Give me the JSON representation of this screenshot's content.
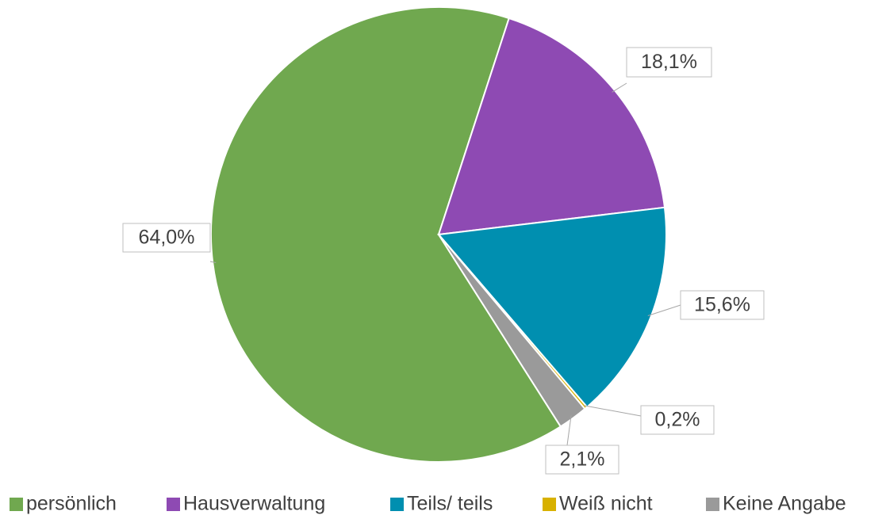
{
  "chart_data": {
    "type": "pie",
    "categories": [
      "persönlich",
      "Hausverwaltung",
      "Teils/ teils",
      "Weiß nicht",
      "Keine Angabe"
    ],
    "values": [
      64.0,
      18.1,
      15.6,
      0.2,
      2.1
    ],
    "value_labels": [
      "64,0%",
      "18,1%",
      "15,6%",
      "0,2%",
      "2,1%"
    ],
    "colors": [
      "#70a84f",
      "#8e4ab3",
      "#008fb0",
      "#d8b100",
      "#9a9a9a"
    ],
    "legend": "bottom"
  }
}
